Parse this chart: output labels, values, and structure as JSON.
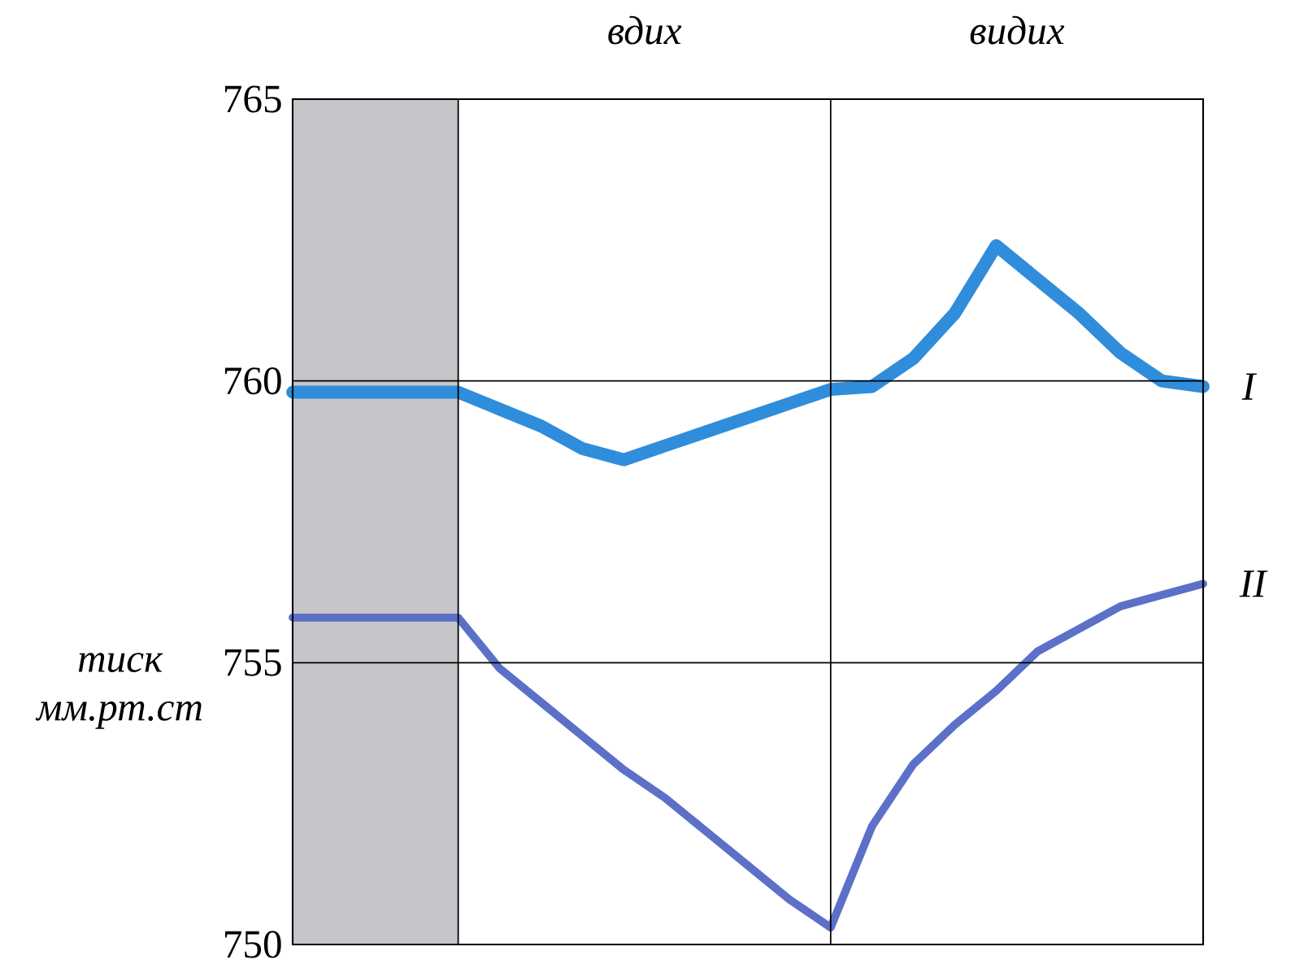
{
  "chart_data": {
    "type": "line",
    "ylabel": "тиск мм.рт.ст",
    "categories": [
      null,
      null,
      null,
      null,
      null,
      null,
      null,
      null,
      null,
      null,
      null,
      null,
      null,
      null,
      null,
      null,
      null,
      null,
      null,
      null,
      null,
      null,
      null
    ],
    "ylim": [
      750,
      765
    ],
    "yticks": [
      750,
      755,
      760,
      765
    ],
    "grid": true,
    "annotations": [
      "вдих",
      "видих"
    ],
    "series": [
      {
        "name": "I",
        "color": "#2f8ddb",
        "values": [
          759.8,
          759.8,
          759.8,
          759.8,
          759.8,
          759.5,
          759.2,
          758.8,
          758.6,
          758.85,
          759.1,
          759.35,
          759.6,
          759.85,
          759.9,
          760.4,
          761.2,
          762.4,
          761.8,
          761.2,
          760.5,
          760.0,
          759.9
        ]
      },
      {
        "name": "II",
        "color": "#5c70c8",
        "values": [
          755.8,
          755.8,
          755.8,
          755.8,
          755.8,
          754.9,
          754.3,
          753.7,
          753.1,
          752.6,
          752.0,
          751.4,
          750.8,
          750.3,
          752.1,
          753.2,
          753.9,
          754.5,
          755.2,
          755.6,
          756.0,
          756.2,
          756.4
        ]
      }
    ]
  }
}
